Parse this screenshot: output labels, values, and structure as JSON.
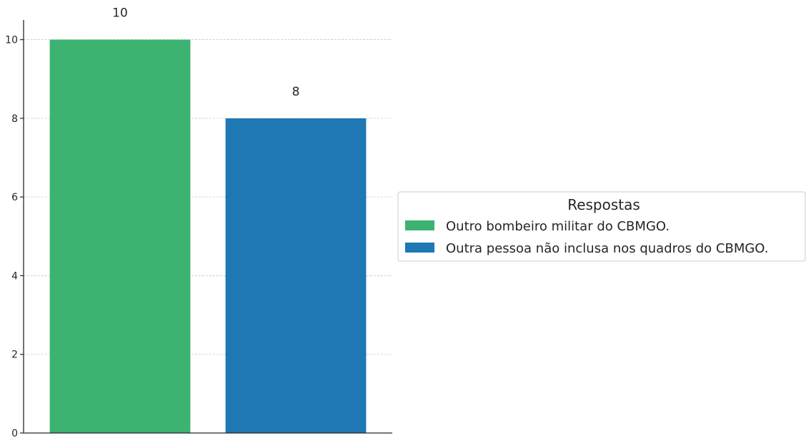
{
  "chart_data": {
    "type": "bar",
    "categories": [
      "Outro bombeiro militar do CBMGO.",
      "Outra pessoa não inclusa nos quadros do CBMGO."
    ],
    "values": [
      10,
      8
    ],
    "data_labels": [
      "10",
      "8"
    ],
    "colors": [
      "#3cb371",
      "#1f77b4"
    ],
    "ylim": [
      0,
      10.5
    ],
    "yticks": [
      "0",
      "2",
      "4",
      "6",
      "8",
      "10"
    ],
    "ytick_values": [
      0,
      2,
      4,
      6,
      8,
      10
    ],
    "grid": "horizontal dashed",
    "legend": {
      "title": "Respostas",
      "placement": "center-right",
      "entries": [
        "Outro bombeiro militar do CBMGO.",
        "Outra pessoa não inclusa nos quadros do CBMGO."
      ]
    }
  }
}
